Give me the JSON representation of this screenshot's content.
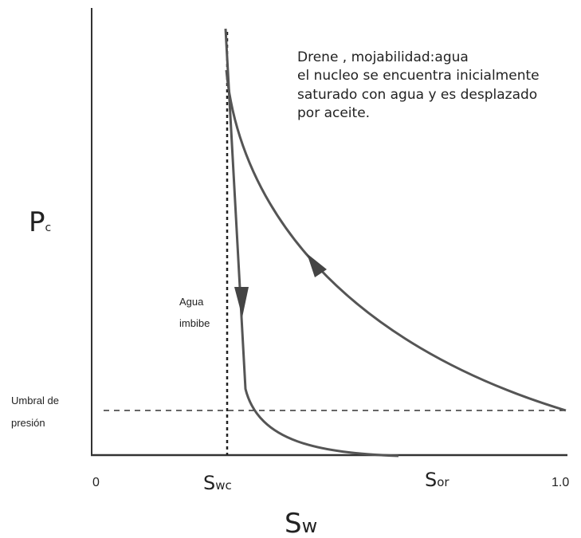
{
  "note": [
    "Drene , mojabilidad:agua",
    "el nucleo se encuentra inicialmente",
    "saturado con agua y es desplazado",
    "por aceite."
  ],
  "y_axis_label": {
    "base": "P",
    "sub": "c"
  },
  "x_axis_label": {
    "base": "S",
    "sub": "w"
  },
  "imbibition_label": [
    "Agua",
    "imbibe"
  ],
  "threshold_label": [
    "Umbral de",
    "presión"
  ],
  "x_marks": {
    "zero": "0",
    "swc": {
      "base": "S",
      "sub": "wc"
    },
    "sor": {
      "base": "S",
      "sub": "or"
    },
    "one": "1.0"
  }
}
